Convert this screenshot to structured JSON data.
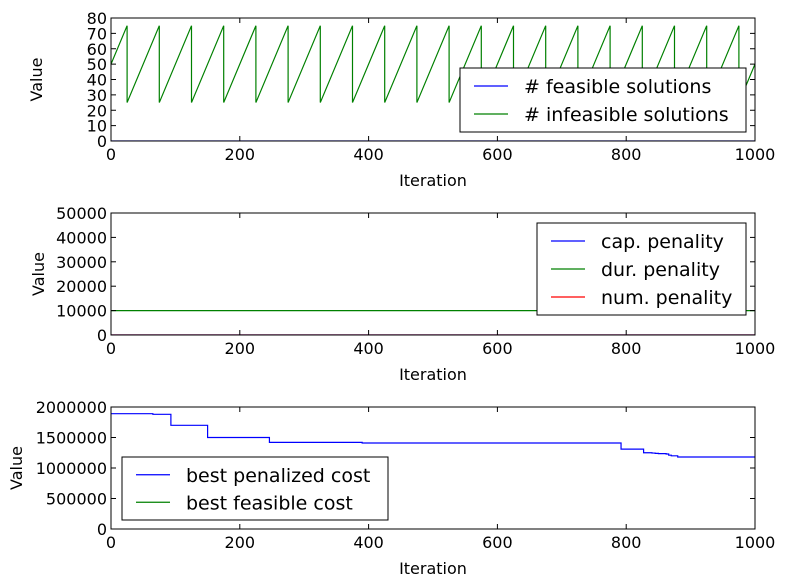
{
  "colors": {
    "blue": "#0000ff",
    "green": "#008000",
    "red": "#ff0000",
    "frame": "#000000",
    "background": "#ffffff"
  },
  "chart_data": [
    {
      "type": "line",
      "xlabel": "Iteration",
      "ylabel": "Value",
      "xlim": [
        0,
        1000
      ],
      "ylim": [
        0,
        80
      ],
      "xticks": [
        "0",
        "200",
        "400",
        "600",
        "800",
        "1000"
      ],
      "yticks": [
        "0",
        "10",
        "20",
        "30",
        "40",
        "50",
        "60",
        "70",
        "80"
      ],
      "grid": false,
      "legend": "lower-right",
      "series": [
        {
          "name": "# feasible solutions",
          "color": "#0000ff",
          "x": [
            0,
            1000
          ],
          "y": [
            0,
            0
          ]
        },
        {
          "name": "# infeasible solutions",
          "color": "#008000",
          "pattern": "sawtooth",
          "peak": 75,
          "trough": 25,
          "period": 50,
          "first_peak_x": 25,
          "y_at_0": 50,
          "y_at_1000": 50
        }
      ]
    },
    {
      "type": "line",
      "xlabel": "Iteration",
      "ylabel": "Value",
      "xlim": [
        0,
        1000
      ],
      "ylim": [
        0,
        50000
      ],
      "xticks": [
        "0",
        "200",
        "400",
        "600",
        "800",
        "1000"
      ],
      "yticks": [
        "0",
        "10000",
        "20000",
        "30000",
        "40000",
        "50000"
      ],
      "grid": false,
      "legend": "top-right",
      "series": [
        {
          "name": "cap. penality",
          "color": "#0000ff",
          "x": [
            0,
            1000
          ],
          "y": [
            0,
            0
          ]
        },
        {
          "name": "dur. penality",
          "color": "#008000",
          "x": [
            0,
            1000
          ],
          "y": [
            10000,
            10000
          ]
        },
        {
          "name": "num. penality",
          "color": "#ff0000",
          "x": [
            0,
            1000
          ],
          "y": [
            0,
            0
          ]
        }
      ]
    },
    {
      "type": "line",
      "xlabel": "Iteration",
      "ylabel": "Value",
      "xlim": [
        0,
        1000
      ],
      "ylim": [
        0,
        2000000
      ],
      "xticks": [
        "0",
        "200",
        "400",
        "600",
        "800",
        "1000"
      ],
      "yticks": [
        "0",
        "500000",
        "1000000",
        "1500000",
        "2000000"
      ],
      "grid": false,
      "legend": "lower-left",
      "series": [
        {
          "name": "best penalized cost",
          "color": "#0000ff",
          "step": true,
          "x": [
            0,
            65,
            93,
            150,
            246,
            390,
            792,
            827,
            840,
            845,
            850,
            862,
            866,
            870,
            880,
            1000
          ],
          "y": [
            1890000,
            1880000,
            1700000,
            1500000,
            1420000,
            1410000,
            1310000,
            1250000,
            1245000,
            1240000,
            1235000,
            1230000,
            1210000,
            1200000,
            1180000,
            1180000
          ]
        },
        {
          "name": "best feasible cost",
          "color": "#008000",
          "x": [],
          "y": []
        }
      ]
    }
  ]
}
